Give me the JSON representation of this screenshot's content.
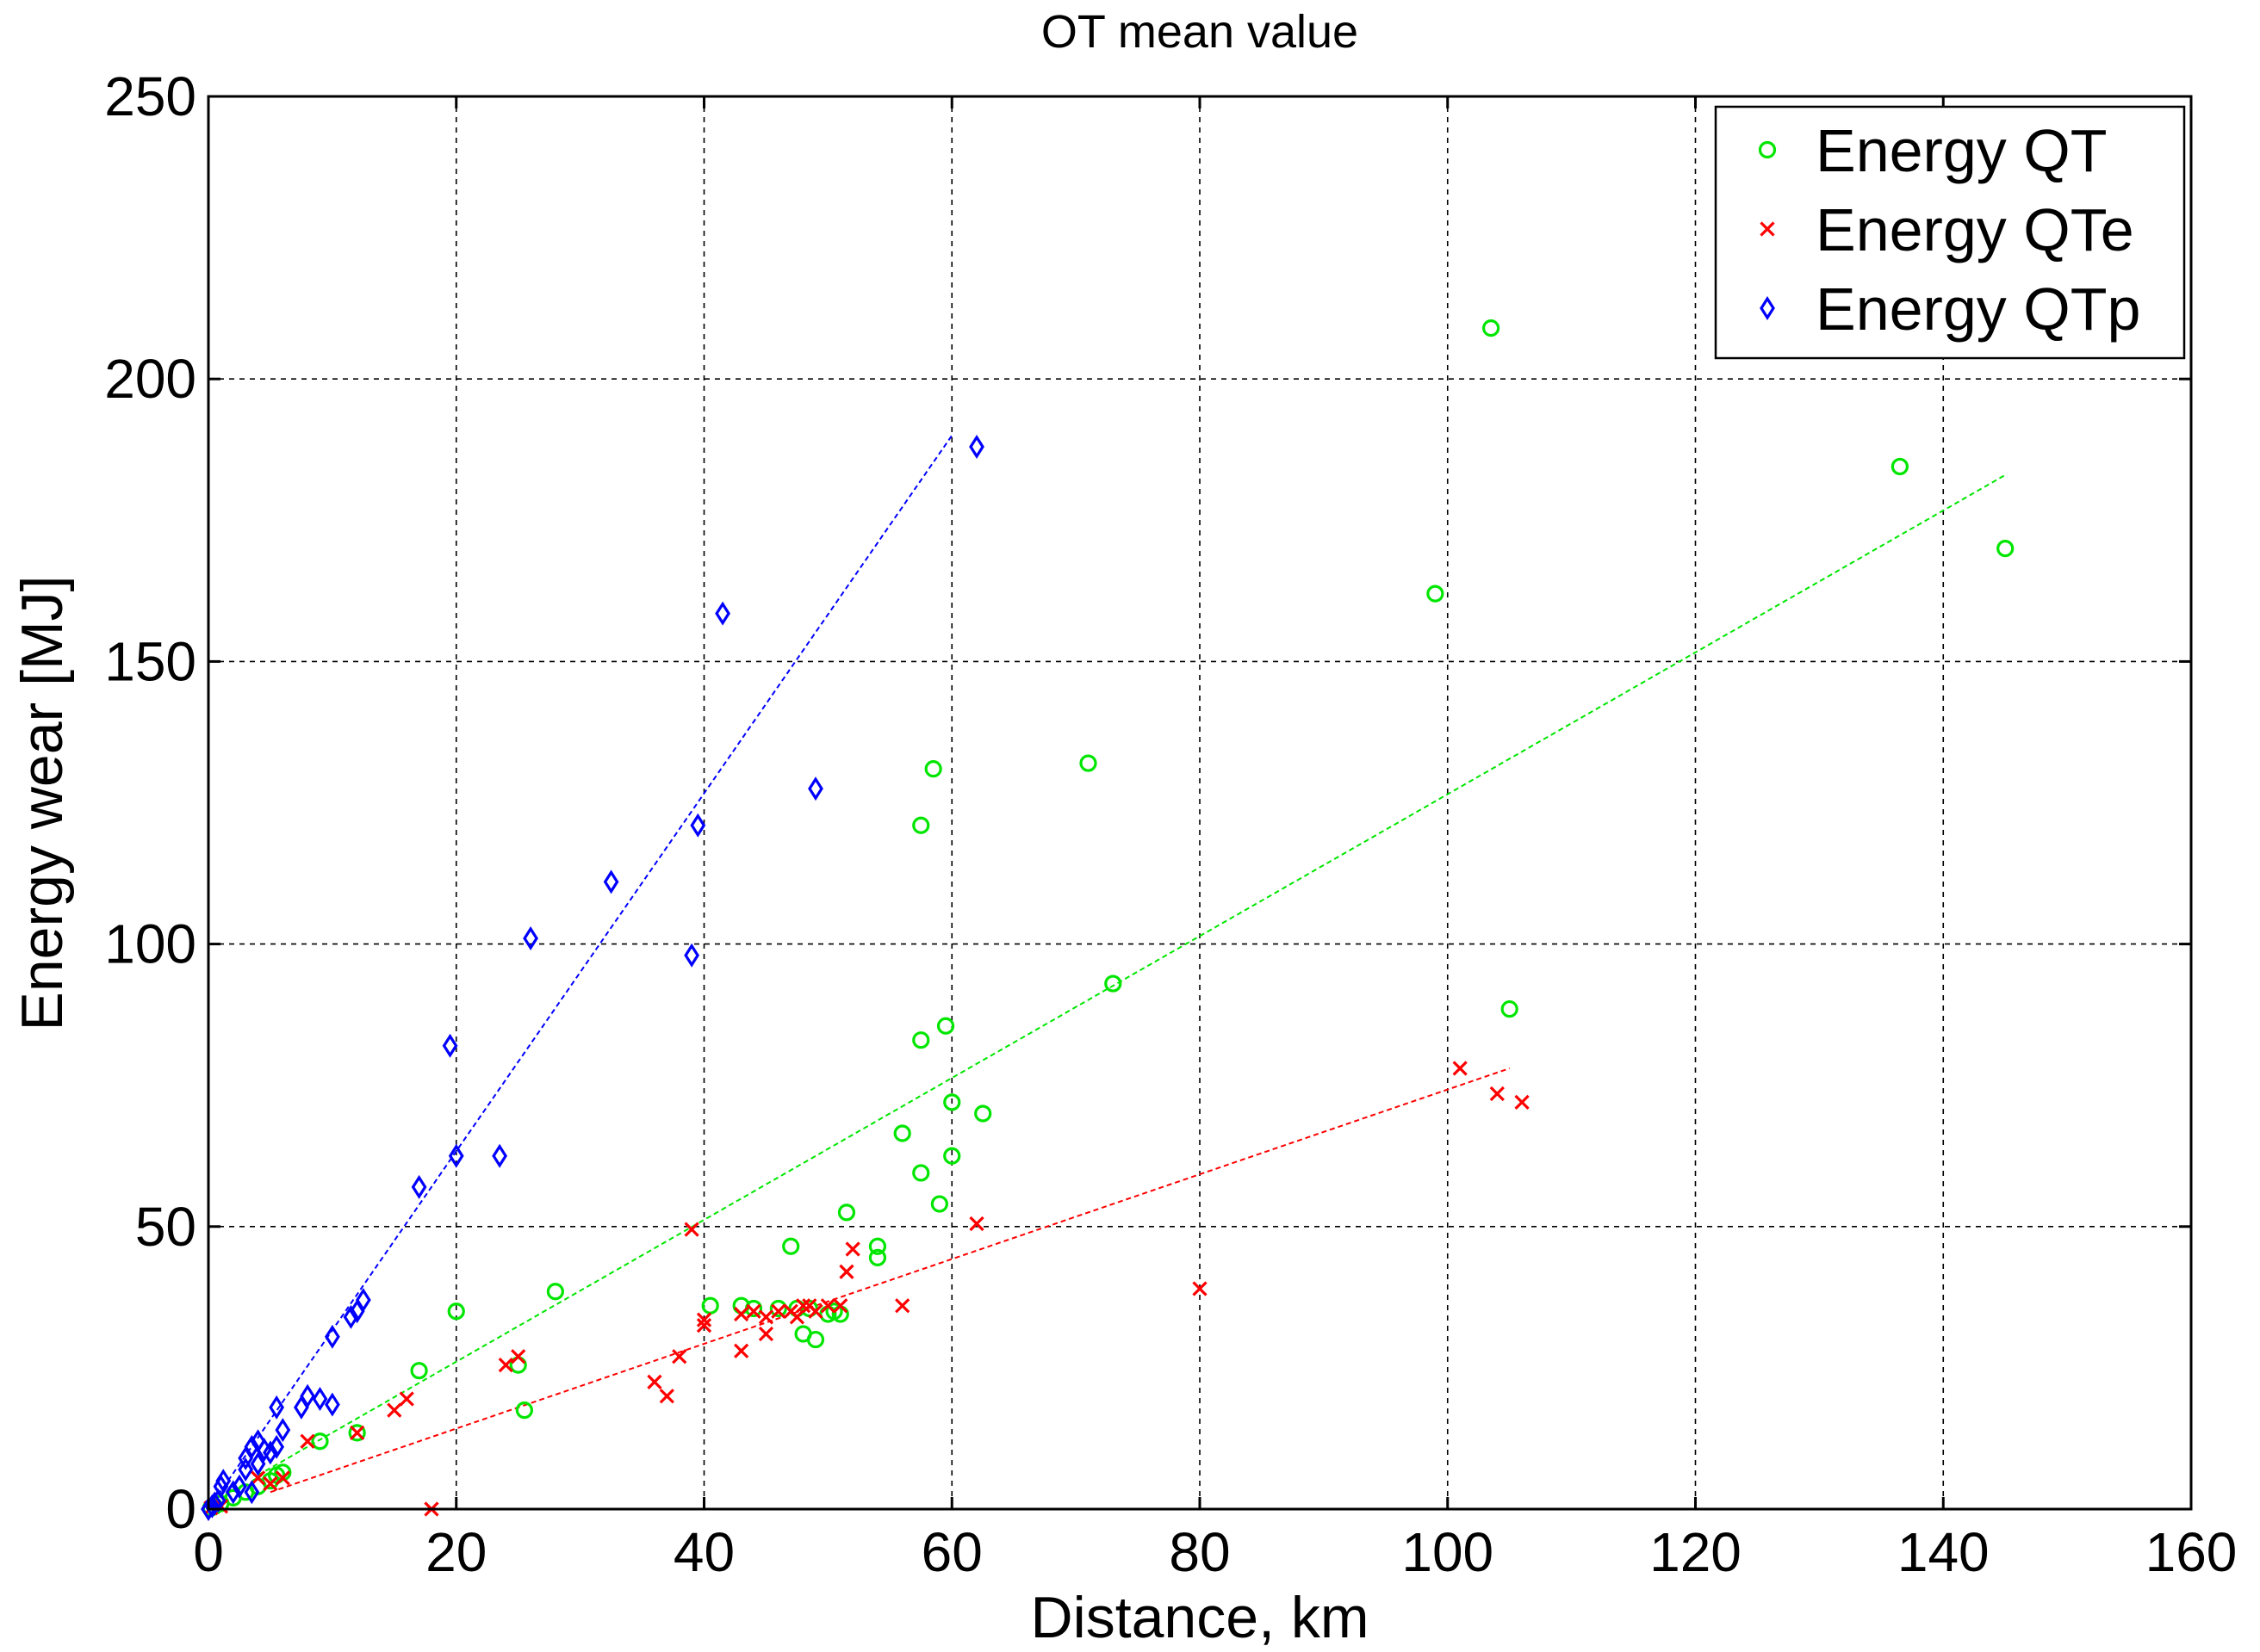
{
  "chart_data": {
    "type": "scatter",
    "title": "OT mean value",
    "xlabel": "Distance, km",
    "ylabel": "Energy wear [MJ]",
    "xlim": [
      0,
      160
    ],
    "ylim": [
      0,
      250
    ],
    "xticks": [
      0,
      20,
      40,
      60,
      80,
      100,
      120,
      140,
      160
    ],
    "yticks": [
      0,
      50,
      100,
      150,
      200,
      250
    ],
    "grid": true,
    "legend_position": "top-right",
    "series": [
      {
        "name": "Energy QT",
        "color": "#00e600",
        "marker": "circle",
        "points": [
          [
            0.2,
            0.2
          ],
          [
            0.5,
            0.5
          ],
          [
            1,
            1
          ],
          [
            2,
            2
          ],
          [
            3,
            3
          ],
          [
            4,
            4
          ],
          [
            5,
            5
          ],
          [
            5.5,
            6
          ],
          [
            6,
            6.5
          ],
          [
            9,
            12
          ],
          [
            12,
            13.5
          ],
          [
            17,
            24.5
          ],
          [
            20,
            35
          ],
          [
            25,
            25.5
          ],
          [
            25.5,
            17.5
          ],
          [
            28,
            38.5
          ],
          [
            40.5,
            36
          ],
          [
            43,
            36
          ],
          [
            44,
            35.5
          ],
          [
            46,
            35.5
          ],
          [
            47,
            46.5
          ],
          [
            47.5,
            35.5
          ],
          [
            48,
            31
          ],
          [
            48.5,
            35.5
          ],
          [
            49,
            30
          ],
          [
            50,
            34.5
          ],
          [
            50.5,
            35
          ],
          [
            51,
            34.5
          ],
          [
            51.5,
            52.5
          ],
          [
            54,
            46.5
          ],
          [
            54,
            44.5
          ],
          [
            56,
            66.5
          ],
          [
            57.5,
            59.5
          ],
          [
            57.5,
            121
          ],
          [
            57.5,
            83
          ],
          [
            58.5,
            131
          ],
          [
            59,
            54
          ],
          [
            59.5,
            85.5
          ],
          [
            60,
            62.5
          ],
          [
            60,
            72
          ],
          [
            62.5,
            70
          ],
          [
            71,
            132
          ],
          [
            73,
            93
          ],
          [
            99,
            162
          ],
          [
            103.5,
            209
          ],
          [
            105,
            88.5
          ],
          [
            136.5,
            184.5
          ],
          [
            145,
            170
          ]
        ],
        "trend": [
          [
            4,
            6
          ],
          [
            145,
            183
          ]
        ]
      },
      {
        "name": "Energy QTe",
        "color": "#ff0000",
        "marker": "x",
        "points": [
          [
            0.2,
            0.2
          ],
          [
            1,
            0.5
          ],
          [
            4,
            5.5
          ],
          [
            5,
            4.5
          ],
          [
            6,
            5.5
          ],
          [
            8,
            12
          ],
          [
            12,
            13.5
          ],
          [
            15,
            17.5
          ],
          [
            16,
            19.5
          ],
          [
            18,
            0
          ],
          [
            24,
            25.5
          ],
          [
            25,
            27
          ],
          [
            36,
            22.5
          ],
          [
            37,
            20
          ],
          [
            38,
            27
          ],
          [
            39,
            49.5
          ],
          [
            40,
            32.5
          ],
          [
            40,
            33.5
          ],
          [
            43,
            28
          ],
          [
            43,
            34.5
          ],
          [
            44,
            35
          ],
          [
            45,
            34
          ],
          [
            45,
            31
          ],
          [
            46,
            35
          ],
          [
            47,
            35
          ],
          [
            47.5,
            34
          ],
          [
            48,
            36
          ],
          [
            48.5,
            36
          ],
          [
            49,
            35
          ],
          [
            50,
            36
          ],
          [
            51,
            36
          ],
          [
            51.5,
            42
          ],
          [
            52,
            46
          ],
          [
            56,
            36
          ],
          [
            62,
            50.5
          ],
          [
            80,
            39
          ],
          [
            101,
            78
          ],
          [
            104,
            73.5
          ],
          [
            106,
            72
          ]
        ],
        "trend": [
          [
            5,
            3
          ],
          [
            105,
            78
          ]
        ]
      },
      {
        "name": "Energy QTp",
        "color": "#0000ff",
        "marker": "diamond",
        "points": [
          [
            0,
            0
          ],
          [
            0.3,
            0.5
          ],
          [
            0.5,
            1
          ],
          [
            0.8,
            1.5
          ],
          [
            1,
            4
          ],
          [
            1.2,
            5
          ],
          [
            2,
            3
          ],
          [
            2.5,
            4
          ],
          [
            3,
            7
          ],
          [
            3,
            9
          ],
          [
            3.5,
            11
          ],
          [
            3.5,
            3
          ],
          [
            4,
            12
          ],
          [
            4,
            8
          ],
          [
            4.5,
            10.5
          ],
          [
            5,
            10
          ],
          [
            5.5,
            18
          ],
          [
            5.5,
            11
          ],
          [
            6,
            14
          ],
          [
            7.5,
            18
          ],
          [
            8,
            20
          ],
          [
            9,
            19.5
          ],
          [
            10,
            18.5
          ],
          [
            10,
            30.5
          ],
          [
            11.5,
            34
          ],
          [
            12,
            35
          ],
          [
            12.5,
            37
          ],
          [
            17,
            57
          ],
          [
            19.5,
            82
          ],
          [
            20,
            62.5
          ],
          [
            23.5,
            62.5
          ],
          [
            26,
            101
          ],
          [
            32.5,
            111
          ],
          [
            39,
            98
          ],
          [
            39.5,
            121
          ],
          [
            41.5,
            158.5
          ],
          [
            49,
            127.5
          ],
          [
            62,
            188
          ]
        ],
        "trend": [
          [
            0,
            0
          ],
          [
            60,
            190
          ]
        ]
      }
    ]
  }
}
